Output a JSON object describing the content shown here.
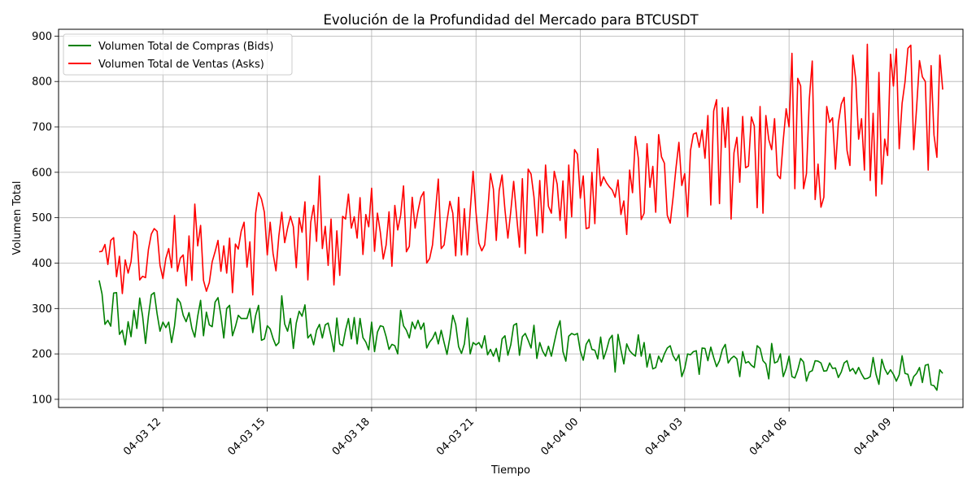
{
  "chart_data": {
    "type": "line",
    "title": "Evolución de la Profundidad del Mercado para BTCUSDT",
    "xlabel": "Tiempo",
    "ylabel": "Volumen Total",
    "xlim": [
      "2025-04-03 09:00",
      "2025-04-04 11:00"
    ],
    "ylim": [
      82,
      915
    ],
    "grid": true,
    "legend_position": "upper-left",
    "x_ticks": [
      {
        "value": "2025-04-03 12:00",
        "label": "04-03 12"
      },
      {
        "value": "2025-04-03 15:00",
        "label": "04-03 15"
      },
      {
        "value": "2025-04-03 18:00",
        "label": "04-03 18"
      },
      {
        "value": "2025-04-03 21:00",
        "label": "04-03 21"
      },
      {
        "value": "2025-04-04 00:00",
        "label": "04-04 00"
      },
      {
        "value": "2025-04-04 03:00",
        "label": "04-04 03"
      },
      {
        "value": "2025-04-04 06:00",
        "label": "04-04 06"
      },
      {
        "value": "2025-04-04 09:00",
        "label": "04-04 09"
      }
    ],
    "y_ticks": [
      100,
      200,
      300,
      400,
      500,
      600,
      700,
      800,
      900
    ],
    "x_start": "2025-04-03 10:10",
    "x_step_minutes": 5,
    "series": [
      {
        "name": "Volumen Total de Compras (Bids)",
        "color": "#008000",
        "values": [
          362,
          332,
          265,
          274,
          261,
          334,
          335,
          243,
          252,
          220,
          271,
          238,
          296,
          256,
          323,
          283,
          223,
          283,
          330,
          335,
          288,
          250,
          270,
          258,
          270,
          225,
          262,
          322,
          313,
          285,
          271,
          291,
          256,
          237,
          283,
          318,
          240,
          292,
          264,
          260,
          314,
          324,
          285,
          235,
          300,
          307,
          240,
          260,
          285,
          278,
          278,
          278,
          300,
          247,
          285,
          307,
          230,
          233,
          262,
          255,
          234,
          218,
          225,
          328,
          266,
          250,
          278,
          212,
          268,
          294,
          283,
          308,
          235,
          243,
          220,
          252,
          265,
          235,
          264,
          268,
          239,
          205,
          279,
          222,
          218,
          252,
          278,
          233,
          280,
          222,
          278,
          236,
          226,
          209,
          270,
          205,
          248,
          262,
          260,
          238,
          210,
          221,
          218,
          200,
          296,
          262,
          252,
          235,
          270,
          255,
          274,
          254,
          268,
          213,
          226,
          234,
          248,
          222,
          252,
          225,
          199,
          236,
          285,
          265,
          216,
          201,
          222,
          279,
          200,
          225,
          220,
          225,
          213,
          240,
          198,
          210,
          195,
          212,
          183,
          233,
          240,
          197,
          220,
          263,
          267,
          197,
          238,
          245,
          230,
          213,
          263,
          190,
          225,
          206,
          195,
          217,
          195,
          225,
          254,
          273,
          205,
          184,
          239,
          245,
          242,
          245,
          206,
          186,
          221,
          232,
          210,
          208,
          189,
          237,
          189,
          208,
          232,
          241,
          160,
          243,
          209,
          178,
          222,
          207,
          200,
          195,
          242,
          195,
          225,
          171,
          200,
          167,
          170,
          195,
          182,
          200,
          213,
          218,
          196,
          185,
          198,
          150,
          168,
          200,
          198,
          205,
          207,
          155,
          213,
          212,
          185,
          215,
          192,
          172,
          185,
          210,
          221,
          180,
          190,
          195,
          189,
          150,
          205,
          180,
          183,
          175,
          170,
          218,
          212,
          185,
          178,
          145,
          223,
          180,
          183,
          200,
          150,
          168,
          195,
          150,
          147,
          165,
          190,
          182,
          140,
          160,
          163,
          185,
          184,
          180,
          162,
          163,
          180,
          168,
          169,
          148,
          160,
          180,
          185,
          162,
          168,
          156,
          170,
          156,
          145,
          146,
          150,
          192,
          155,
          133,
          188,
          167,
          155,
          165,
          155,
          140,
          154,
          196,
          157,
          155,
          130,
          150,
          157,
          170,
          137,
          175,
          177,
          132,
          130,
          120,
          165,
          157
        ]
      },
      {
        "name": "Volumen Total de Ventas (Asks)",
        "color": "#ff0000",
        "values": [
          425,
          426,
          441,
          397,
          450,
          456,
          370,
          415,
          333,
          407,
          378,
          403,
          470,
          461,
          363,
          371,
          368,
          430,
          464,
          476,
          470,
          395,
          366,
          410,
          432,
          390,
          505,
          382,
          411,
          418,
          350,
          460,
          362,
          530,
          438,
          483,
          362,
          338,
          357,
          403,
          425,
          450,
          382,
          438,
          378,
          455,
          335,
          442,
          431,
          470,
          490,
          391,
          447,
          330,
          510,
          555,
          541,
          512,
          418,
          490,
          421,
          383,
          460,
          512,
          445,
          477,
          503,
          480,
          390,
          500,
          468,
          535,
          363,
          490,
          527,
          448,
          592,
          432,
          481,
          395,
          497,
          352,
          471,
          373,
          503,
          497,
          552,
          477,
          502,
          455,
          544,
          419,
          507,
          480,
          565,
          426,
          510,
          468,
          409,
          440,
          513,
          393,
          527,
          473,
          505,
          570,
          425,
          437,
          545,
          477,
          515,
          545,
          557,
          400,
          410,
          440,
          512,
          585,
          432,
          440,
          493,
          536,
          510,
          416,
          545,
          418,
          520,
          418,
          515,
          602,
          512,
          444,
          427,
          440,
          510,
          597,
          563,
          450,
          560,
          594,
          517,
          455,
          514,
          580,
          505,
          435,
          586,
          421,
          607,
          596,
          546,
          460,
          582,
          467,
          616,
          525,
          510,
          602,
          574,
          494,
          581,
          455,
          616,
          502,
          650,
          640,
          543,
          592,
          476,
          478,
          600,
          487,
          652,
          570,
          590,
          577,
          568,
          561,
          545,
          583,
          507,
          537,
          463,
          605,
          555,
          679,
          631,
          496,
          510,
          663,
          567,
          613,
          512,
          683,
          634,
          620,
          505,
          488,
          545,
          610,
          666,
          571,
          597,
          502,
          648,
          684,
          687,
          655,
          693,
          631,
          725,
          528,
          735,
          760,
          531,
          742,
          655,
          743,
          497,
          643,
          677,
          578,
          723,
          610,
          614,
          722,
          702,
          522,
          745,
          510,
          725,
          672,
          650,
          718,
          594,
          586,
          671,
          740,
          700,
          862,
          564,
          807,
          790,
          564,
          597,
          762,
          845,
          540,
          618,
          523,
          545,
          745,
          710,
          720,
          607,
          708,
          750,
          765,
          648,
          615,
          858,
          805,
          673,
          718,
          605,
          882,
          582,
          730,
          548,
          820,
          574,
          673,
          637,
          860,
          790,
          872,
          652,
          752,
          799,
          873,
          880,
          650,
          742,
          846,
          810,
          800,
          605,
          835,
          682,
          633,
          858,
          782
        ]
      }
    ]
  }
}
